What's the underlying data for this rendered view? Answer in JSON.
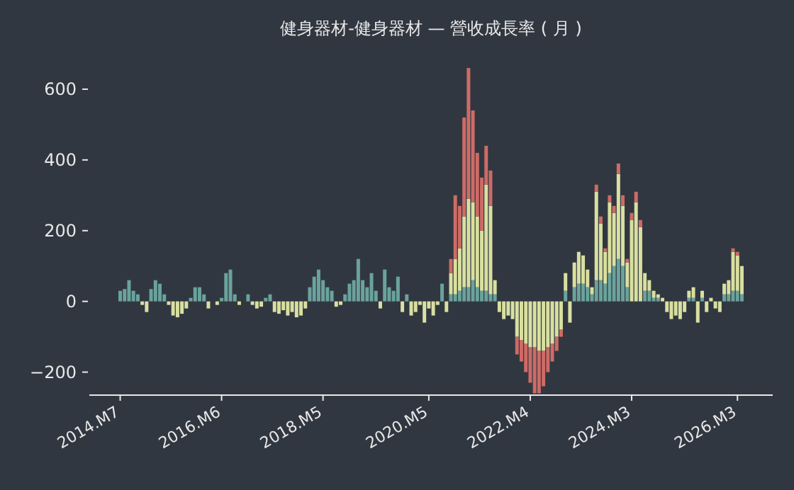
{
  "chart_data": {
    "type": "bar",
    "stacked": true,
    "title": "健身器材-健身器材 — 營收成長率 ( 月 )",
    "categories": [
      "2014.M7",
      null,
      null,
      null,
      null,
      null,
      null,
      null,
      null,
      null,
      null,
      null,
      null,
      null,
      null,
      null,
      null,
      null,
      null,
      null,
      null,
      null,
      null,
      "2016.M6",
      null,
      null,
      null,
      null,
      null,
      null,
      null,
      null,
      null,
      null,
      null,
      null,
      null,
      null,
      null,
      null,
      null,
      null,
      null,
      null,
      null,
      null,
      "2018.M5",
      null,
      null,
      null,
      null,
      null,
      null,
      null,
      null,
      null,
      null,
      null,
      null,
      null,
      null,
      null,
      null,
      null,
      null,
      null,
      null,
      null,
      null,
      null,
      "2020.M5",
      null,
      null,
      null,
      null,
      null,
      null,
      null,
      null,
      null,
      null,
      null,
      null,
      null,
      null,
      null,
      null,
      null,
      null,
      null,
      null,
      null,
      null,
      "2022.M4",
      null,
      null,
      null,
      null,
      null,
      null,
      null,
      null,
      null,
      null,
      null,
      null,
      null,
      null,
      null,
      null,
      null,
      null,
      null,
      null,
      null,
      null,
      "2024.M3",
      null,
      null,
      null,
      null,
      null,
      null,
      null,
      null,
      null,
      null,
      null,
      null,
      null,
      null,
      null,
      null,
      null,
      null,
      null,
      null,
      null,
      null,
      null,
      "2026.M3",
      null
    ],
    "series": [
      {
        "color": "#6aa39c",
        "values": [
          30,
          35,
          60,
          30,
          20,
          0,
          0,
          35,
          60,
          50,
          20,
          0,
          0,
          0,
          0,
          0,
          10,
          40,
          40,
          20,
          0,
          0,
          0,
          10,
          80,
          90,
          20,
          0,
          0,
          20,
          0,
          0,
          0,
          10,
          20,
          0,
          0,
          0,
          0,
          0,
          0,
          0,
          0,
          40,
          70,
          90,
          60,
          40,
          30,
          0,
          0,
          20,
          50,
          60,
          120,
          60,
          40,
          80,
          30,
          0,
          90,
          40,
          30,
          70,
          0,
          20,
          0,
          0,
          0,
          0,
          0,
          0,
          0,
          50,
          0,
          20,
          20,
          30,
          40,
          40,
          60,
          40,
          30,
          30,
          20,
          20,
          0,
          0,
          0,
          0,
          0,
          0,
          0,
          0,
          0,
          0,
          0,
          0,
          0,
          0,
          0,
          30,
          0,
          40,
          50,
          50,
          40,
          20,
          60,
          60,
          50,
          80,
          100,
          120,
          100,
          40,
          0,
          0,
          0,
          30,
          30,
          10,
          10,
          0,
          0,
          0,
          0,
          0,
          0,
          10,
          10,
          0,
          10,
          0,
          0,
          0,
          0,
          20,
          20,
          30,
          30,
          20
        ]
      },
      {
        "color": "#d9e0a0",
        "values": [
          0,
          0,
          0,
          0,
          0,
          -10,
          -30,
          0,
          0,
          0,
          0,
          -10,
          -40,
          -45,
          -35,
          -20,
          0,
          0,
          0,
          0,
          -20,
          0,
          -10,
          0,
          0,
          0,
          0,
          -10,
          0,
          0,
          -10,
          -20,
          -15,
          0,
          0,
          -30,
          -35,
          -25,
          -40,
          -30,
          -45,
          -40,
          -20,
          0,
          0,
          0,
          0,
          0,
          0,
          -15,
          -10,
          0,
          0,
          0,
          0,
          0,
          0,
          0,
          0,
          -20,
          0,
          0,
          0,
          0,
          -30,
          0,
          -40,
          -30,
          -10,
          -60,
          -20,
          -40,
          -10,
          0,
          -30,
          60,
          100,
          120,
          200,
          250,
          220,
          200,
          170,
          300,
          250,
          40,
          -30,
          -50,
          -40,
          -50,
          -100,
          -110,
          -120,
          -130,
          -130,
          -140,
          -140,
          -130,
          -120,
          -100,
          -80,
          50,
          -60,
          70,
          90,
          80,
          50,
          20,
          250,
          160,
          90,
          200,
          150,
          240,
          170,
          70,
          230,
          280,
          210,
          50,
          30,
          20,
          10,
          10,
          -30,
          -50,
          -40,
          -50,
          -30,
          20,
          30,
          -60,
          20,
          -30,
          10,
          -20,
          -30,
          30,
          40,
          110,
          100,
          80
        ]
      },
      {
        "color": "#cd6b66",
        "values": [
          0,
          0,
          0,
          0,
          0,
          0,
          0,
          0,
          0,
          0,
          0,
          0,
          0,
          0,
          0,
          0,
          0,
          0,
          0,
          0,
          0,
          0,
          0,
          0,
          0,
          0,
          0,
          0,
          0,
          0,
          0,
          0,
          0,
          0,
          0,
          0,
          0,
          0,
          0,
          0,
          0,
          0,
          0,
          0,
          0,
          0,
          0,
          0,
          0,
          0,
          0,
          0,
          0,
          0,
          0,
          0,
          0,
          0,
          0,
          0,
          0,
          0,
          0,
          0,
          0,
          0,
          0,
          0,
          0,
          0,
          0,
          0,
          0,
          0,
          0,
          40,
          180,
          120,
          280,
          370,
          260,
          180,
          150,
          110,
          100,
          0,
          0,
          0,
          0,
          0,
          -50,
          -60,
          -80,
          -100,
          -130,
          -120,
          -100,
          -70,
          -50,
          -40,
          -20,
          0,
          0,
          0,
          0,
          0,
          0,
          0,
          20,
          20,
          10,
          20,
          20,
          30,
          30,
          10,
          20,
          30,
          20,
          0,
          0,
          0,
          0,
          0,
          0,
          0,
          0,
          0,
          0,
          0,
          0,
          0,
          0,
          0,
          0,
          0,
          0,
          0,
          0,
          10,
          10,
          0
        ]
      }
    ],
    "ylim": [
      -265,
      660
    ],
    "yticks": [
      -200,
      0,
      200,
      400,
      600
    ]
  }
}
